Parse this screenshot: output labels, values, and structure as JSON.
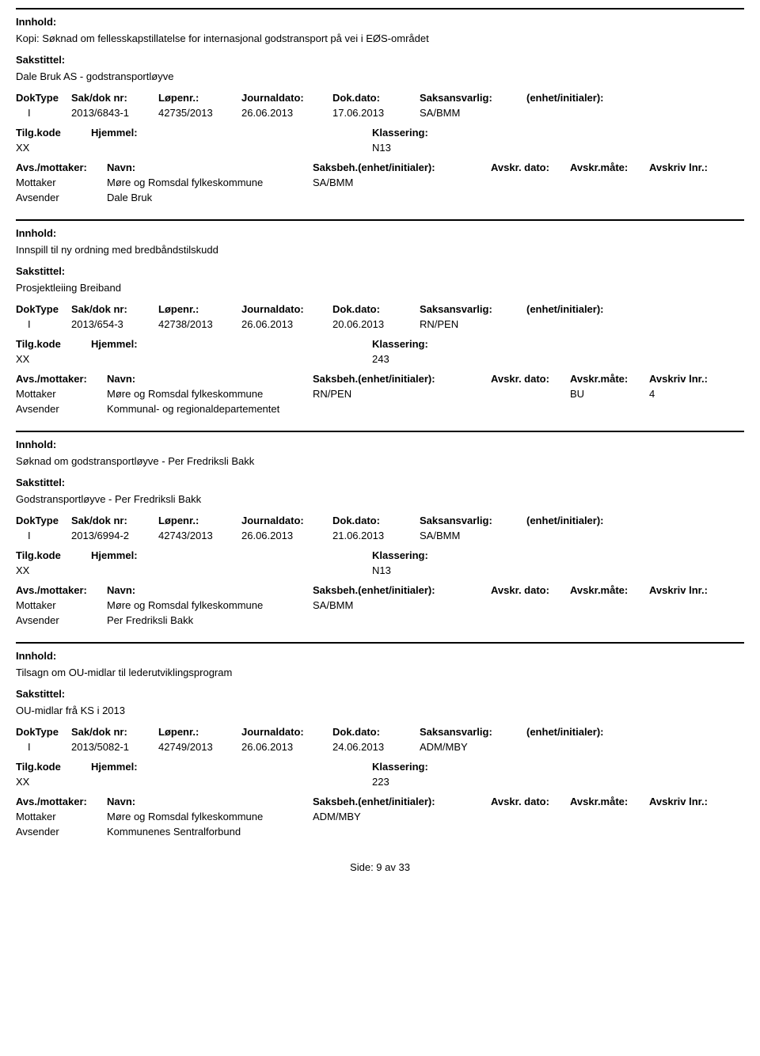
{
  "labels": {
    "innhold": "Innhold:",
    "sakstittel": "Sakstittel:",
    "doktype": "DokType",
    "sakdok": "Sak/dok nr:",
    "lopenr": "Løpenr.:",
    "journaldato": "Journaldato:",
    "dokdato": "Dok.dato:",
    "saksansvarlig": "Saksansvarlig:",
    "enhetinitialer": "(enhet/initialer):",
    "tilgkode": "Tilg.kode",
    "hjemmel": "Hjemmel:",
    "klassering": "Klassering:",
    "avsmottaker": "Avs./mottaker:",
    "navn": "Navn:",
    "saksbeh": "Saksbeh.(enhet/initialer):",
    "avskrdato": "Avskr. dato:",
    "avskrmote": "Avskr.måte:",
    "avskrivlnr": "Avskriv lnr.:",
    "mottaker": "Mottaker",
    "avsender": "Avsender"
  },
  "records": [
    {
      "innhold": "Kopi: Søknad om fellesskapstillatelse for internasjonal godstransport på vei i EØS-området",
      "sakstittel": "Dale Bruk AS - godstransportløyve",
      "doktype": "I",
      "sakdok": "2013/6843-1",
      "lopenr": "42735/2013",
      "journaldato": "26.06.2013",
      "dokdato": "17.06.2013",
      "saksansvarlig": "SA/BMM",
      "tilgkode": "XX",
      "klassering": "N13",
      "parties": [
        {
          "role": "Mottaker",
          "name": "Møre og Romsdal fylkeskommune",
          "saksbeh": "SA/BMM",
          "avskrmote": "",
          "avskrivlnr": ""
        },
        {
          "role": "Avsender",
          "name": "Dale Bruk",
          "saksbeh": "",
          "avskrmote": "",
          "avskrivlnr": ""
        }
      ]
    },
    {
      "innhold": "Innspill til ny ordning med bredbåndstilskudd",
      "sakstittel": "Prosjektleiing Breiband",
      "doktype": "I",
      "sakdok": "2013/654-3",
      "lopenr": "42738/2013",
      "journaldato": "26.06.2013",
      "dokdato": "20.06.2013",
      "saksansvarlig": "RN/PEN",
      "tilgkode": "XX",
      "klassering": "243",
      "parties": [
        {
          "role": "Mottaker",
          "name": "Møre og Romsdal fylkeskommune",
          "saksbeh": "RN/PEN",
          "avskrmote": "BU",
          "avskrivlnr": "4"
        },
        {
          "role": "Avsender",
          "name": "Kommunal- og regionaldepartementet",
          "saksbeh": "",
          "avskrmote": "",
          "avskrivlnr": ""
        }
      ]
    },
    {
      "innhold": "Søknad om godstransportløyve - Per Fredriksli Bakk",
      "sakstittel": "Godstransportløyve - Per Fredriksli Bakk",
      "doktype": "I",
      "sakdok": "2013/6994-2",
      "lopenr": "42743/2013",
      "journaldato": "26.06.2013",
      "dokdato": "21.06.2013",
      "saksansvarlig": "SA/BMM",
      "tilgkode": "XX",
      "klassering": "N13",
      "parties": [
        {
          "role": "Mottaker",
          "name": "Møre og Romsdal fylkeskommune",
          "saksbeh": "SA/BMM",
          "avskrmote": "",
          "avskrivlnr": ""
        },
        {
          "role": "Avsender",
          "name": "Per Fredriksli Bakk",
          "saksbeh": "",
          "avskrmote": "",
          "avskrivlnr": ""
        }
      ]
    },
    {
      "innhold": "Tilsagn om OU-midlar til lederutviklingsprogram",
      "sakstittel": "OU-midlar frå KS i 2013",
      "doktype": "I",
      "sakdok": "2013/5082-1",
      "lopenr": "42749/2013",
      "journaldato": "26.06.2013",
      "dokdato": "24.06.2013",
      "saksansvarlig": "ADM/MBY",
      "tilgkode": "XX",
      "klassering": "223",
      "parties": [
        {
          "role": "Mottaker",
          "name": "Møre og Romsdal fylkeskommune",
          "saksbeh": "ADM/MBY",
          "avskrmote": "",
          "avskrivlnr": ""
        },
        {
          "role": "Avsender",
          "name": "Kommunenes Sentralforbund",
          "saksbeh": "",
          "avskrmote": "",
          "avskrivlnr": ""
        }
      ]
    }
  ],
  "footer": "Side: 9 av 33"
}
